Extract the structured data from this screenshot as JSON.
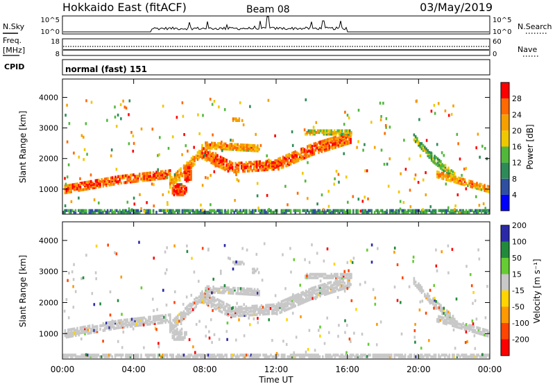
{
  "header": {
    "radar": "Hokkaido East (fitACF)",
    "beam": "Beam 08",
    "date": "03/May/2019"
  },
  "panels": {
    "nsky": {
      "label": "N.Sky",
      "left_ticks": [
        "10^5",
        "10^0"
      ],
      "right_ticks": [
        "10^5",
        "10^0"
      ],
      "right_label": "N.Search"
    },
    "freq": {
      "label_line1": "Freq.",
      "label_line2": "[MHz]",
      "left_ticks": [
        "18",
        "8"
      ],
      "right_ticks": [
        "60",
        "0"
      ],
      "right_label": "Nave"
    },
    "cpid": {
      "label": "CPID",
      "mode": "normal (fast) 151"
    }
  },
  "colors": {
    "power": [
      "#0000ff",
      "#2f4fa0",
      "#2e8b57",
      "#52b83c",
      "#f0c800",
      "#f5a000",
      "#ff6a00",
      "#ff0000"
    ],
    "velocity": [
      "#ff0000",
      "#ff4500",
      "#ff9900",
      "#ffd400",
      "#c8c8c8",
      "#66cc33",
      "#228b3b",
      "#2a2aa8"
    ],
    "ground": "#bebebe"
  },
  "chart_data": [
    {
      "type": "heatmap",
      "name": "Power",
      "ylabel": "Slant Range [km]",
      "yticks": [
        "1000",
        "2000",
        "3000",
        "4000"
      ],
      "ylim": [
        180,
        4600
      ],
      "colorbar": {
        "label": "Power [dB]",
        "ticks": [
          "4",
          "8",
          "12",
          "16",
          "20",
          "24",
          "28"
        ],
        "range": [
          0,
          32
        ]
      },
      "features": [
        {
          "kind": "band",
          "from_h": 0.1,
          "to_h": 3.0,
          "start_km": 1000,
          "end_km": 1300,
          "width_km": 260,
          "level": 28
        },
        {
          "kind": "band",
          "from_h": 3.0,
          "to_h": 6.0,
          "start_km": 1300,
          "end_km": 1500,
          "width_km": 250,
          "level": 28
        },
        {
          "kind": "band",
          "from_h": 6.0,
          "to_h": 7.8,
          "start_km": 1200,
          "end_km": 2200,
          "width_km": 300,
          "level": 24
        },
        {
          "kind": "band",
          "from_h": 7.8,
          "to_h": 9.5,
          "start_km": 2200,
          "end_km": 1700,
          "width_km": 380,
          "level": 28
        },
        {
          "kind": "band",
          "from_h": 9.5,
          "to_h": 12.0,
          "start_km": 1700,
          "end_km": 1800,
          "width_km": 300,
          "level": 28
        },
        {
          "kind": "band",
          "from_h": 12.0,
          "to_h": 14.0,
          "start_km": 1800,
          "end_km": 2300,
          "width_km": 350,
          "level": 28
        },
        {
          "kind": "band",
          "from_h": 14.0,
          "to_h": 16.2,
          "start_km": 2300,
          "end_km": 2700,
          "width_km": 350,
          "level": 28
        },
        {
          "kind": "band",
          "from_h": 8.0,
          "to_h": 11.0,
          "start_km": 2450,
          "end_km": 2350,
          "width_km": 220,
          "level": 24
        },
        {
          "kind": "band",
          "from_h": 13.6,
          "to_h": 16.2,
          "start_km": 2850,
          "end_km": 2850,
          "width_km": 120,
          "level": 20
        },
        {
          "kind": "blob",
          "h": 6.5,
          "km": 950,
          "rh": 0.45,
          "rkm": 200,
          "level": 28
        },
        {
          "kind": "blob",
          "h": 7.0,
          "km": 1500,
          "rh": 0.25,
          "rkm": 300,
          "level": 28
        },
        {
          "kind": "blob",
          "h": 9.8,
          "km": 3250,
          "rh": 0.35,
          "rkm": 70,
          "level": 24
        },
        {
          "kind": "band",
          "from_h": 19.7,
          "to_h": 20.6,
          "start_km": 2700,
          "end_km": 2100,
          "width_km": 200,
          "level": 16
        },
        {
          "kind": "band",
          "from_h": 20.6,
          "to_h": 22.0,
          "start_km": 2100,
          "end_km": 1400,
          "width_km": 250,
          "level": 16
        },
        {
          "kind": "band",
          "from_h": 21.0,
          "to_h": 24.0,
          "start_km": 1500,
          "end_km": 1000,
          "width_km": 220,
          "level": 24
        },
        {
          "kind": "band",
          "from_h": 0.0,
          "to_h": 24.0,
          "start_km": 260,
          "end_km": 260,
          "width_km": 160,
          "level": 12
        }
      ]
    },
    {
      "type": "heatmap",
      "name": "Velocity",
      "ylabel": "Slant Range [km]",
      "yticks": [
        "1000",
        "2000",
        "3000",
        "4000"
      ],
      "ylim": [
        180,
        4600
      ],
      "colorbar": {
        "label": "Velocity [m s⁻¹]",
        "ticks": [
          "-200",
          "-100",
          "-50",
          "-15",
          "15",
          "50",
          "100",
          "200"
        ],
        "range": [
          -250,
          250
        ]
      },
      "features": [
        {
          "kind": "band",
          "from_h": 0.1,
          "to_h": 3.0,
          "start_km": 1000,
          "end_km": 1300,
          "width_km": 260,
          "level": 0
        },
        {
          "kind": "band",
          "from_h": 3.0,
          "to_h": 6.0,
          "start_km": 1300,
          "end_km": 1500,
          "width_km": 250,
          "level": 0
        },
        {
          "kind": "band",
          "from_h": 6.0,
          "to_h": 7.8,
          "start_km": 1200,
          "end_km": 2200,
          "width_km": 300,
          "level": 0
        },
        {
          "kind": "band",
          "from_h": 7.8,
          "to_h": 9.5,
          "start_km": 2200,
          "end_km": 1700,
          "width_km": 380,
          "level": 0
        },
        {
          "kind": "band",
          "from_h": 9.5,
          "to_h": 12.0,
          "start_km": 1700,
          "end_km": 1800,
          "width_km": 300,
          "level": 0
        },
        {
          "kind": "band",
          "from_h": 12.0,
          "to_h": 14.0,
          "start_km": 1800,
          "end_km": 2300,
          "width_km": 350,
          "level": 0
        },
        {
          "kind": "band",
          "from_h": 14.0,
          "to_h": 16.2,
          "start_km": 2300,
          "end_km": 2700,
          "width_km": 350,
          "level": 0
        },
        {
          "kind": "band",
          "from_h": 8.0,
          "to_h": 11.0,
          "start_km": 2450,
          "end_km": 2350,
          "width_km": 220,
          "level": 0
        },
        {
          "kind": "band",
          "from_h": 13.6,
          "to_h": 16.2,
          "start_km": 2850,
          "end_km": 2850,
          "width_km": 120,
          "level": 0
        },
        {
          "kind": "blob",
          "h": 6.5,
          "km": 950,
          "rh": 0.45,
          "rkm": 200,
          "level": 0
        },
        {
          "kind": "blob",
          "h": 9.8,
          "km": 3250,
          "rh": 0.35,
          "rkm": 70,
          "level": 0
        },
        {
          "kind": "blob",
          "h": 10.8,
          "km": 3000,
          "rh": 0.25,
          "rkm": 100,
          "level": 40
        },
        {
          "kind": "blob",
          "h": 13.3,
          "km": 2050,
          "rh": 0.2,
          "rkm": 80,
          "level": 40
        },
        {
          "kind": "band",
          "from_h": 19.7,
          "to_h": 20.6,
          "start_km": 2700,
          "end_km": 2100,
          "width_km": 200,
          "level": 0
        },
        {
          "kind": "band",
          "from_h": 20.6,
          "to_h": 22.0,
          "start_km": 2100,
          "end_km": 1400,
          "width_km": 250,
          "level": 0
        },
        {
          "kind": "band",
          "from_h": 21.0,
          "to_h": 24.0,
          "start_km": 1500,
          "end_km": 1000,
          "width_km": 220,
          "level": 0
        },
        {
          "kind": "band",
          "from_h": 0.0,
          "to_h": 24.0,
          "start_km": 260,
          "end_km": 260,
          "width_km": 140,
          "level": 30
        }
      ]
    }
  ],
  "xaxis": {
    "label": "Time UT",
    "ticks": [
      "00:00",
      "04:00",
      "08:00",
      "12:00",
      "16:00",
      "20:00",
      "00:00"
    ],
    "range_hours": [
      0,
      24
    ]
  }
}
